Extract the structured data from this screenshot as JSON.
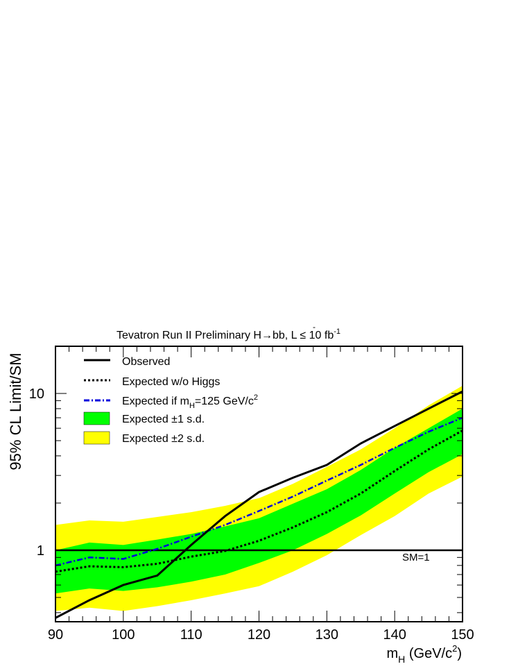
{
  "chart_data": {
    "type": "line",
    "title": {
      "prefix": "Tevatron Run II Preliminary H",
      "arrow": "→",
      "b": "b",
      "bbar": "b",
      "bar_mark": "-",
      "comma": ", L ",
      "le": "≤",
      "lumi": " 10 fb",
      "lumi_exp": "-1"
    },
    "ylabel": "95% CL Limit/SM",
    "xlabel": {
      "m": "m",
      "sub": "H",
      "rest": " (GeV/c",
      "sup": "2",
      "close": ")"
    },
    "xlim": [
      90,
      150
    ],
    "ylim": [
      0.35,
      20
    ],
    "yscale": "log",
    "x_ticks": [
      "90",
      "100",
      "110",
      "120",
      "130",
      "140",
      "150"
    ],
    "y_tick_labels": [
      {
        "value": 1,
        "label": "1"
      },
      {
        "value": 10,
        "label": "10"
      }
    ],
    "x": [
      90,
      95,
      100,
      105,
      110,
      115,
      120,
      125,
      130,
      135,
      140,
      145,
      150
    ],
    "series": [
      {
        "name": "Observed",
        "style": "solid",
        "color": "#000000",
        "values": [
          0.37,
          0.48,
          0.6,
          0.69,
          1.08,
          1.65,
          2.35,
          2.9,
          3.5,
          4.8,
          6.2,
          8.0,
          10.3
        ]
      },
      {
        "name": "Expected w/o Higgs",
        "style": "dotted",
        "color": "#000000",
        "values": [
          0.73,
          0.79,
          0.78,
          0.82,
          0.91,
          0.99,
          1.15,
          1.4,
          1.75,
          2.3,
          3.2,
          4.4,
          5.8
        ]
      },
      {
        "name_parts": {
          "a": "Expected if m",
          "sub": "H",
          "b": "=125 GeV/c",
          "sup": "2"
        },
        "style": "dashdot",
        "color": "#0000dd",
        "values": [
          0.8,
          0.9,
          0.88,
          1.02,
          1.22,
          1.45,
          1.78,
          2.2,
          2.78,
          3.5,
          4.5,
          5.7,
          7.0
        ]
      }
    ],
    "bands": [
      {
        "name": "Expected ±1 s.d.",
        "color": "#00ff00",
        "lower": [
          0.53,
          0.57,
          0.55,
          0.58,
          0.63,
          0.7,
          0.83,
          1.0,
          1.27,
          1.67,
          2.3,
          3.15,
          4.1
        ],
        "upper": [
          1.0,
          1.12,
          1.08,
          1.17,
          1.27,
          1.42,
          1.6,
          1.98,
          2.45,
          3.25,
          4.5,
          6.0,
          8.0
        ]
      },
      {
        "name": "Expected ±2 s.d.",
        "color": "#ffff00",
        "lower": [
          0.41,
          0.43,
          0.41,
          0.44,
          0.48,
          0.53,
          0.59,
          0.73,
          0.93,
          1.25,
          1.65,
          2.3,
          2.95
        ],
        "upper": [
          1.45,
          1.55,
          1.52,
          1.63,
          1.75,
          1.92,
          2.15,
          2.65,
          3.4,
          4.4,
          6.0,
          8.4,
          11.2
        ]
      }
    ],
    "reference_line": {
      "value": 1,
      "label": "SM=1"
    },
    "legend": {
      "placement": "top-left",
      "entries": [
        "Observed",
        "Expected w/o Higgs",
        "Expected if mH=125 GeV/c2",
        "Expected ±1 s.d.",
        "Expected ±2 s.d."
      ]
    }
  }
}
